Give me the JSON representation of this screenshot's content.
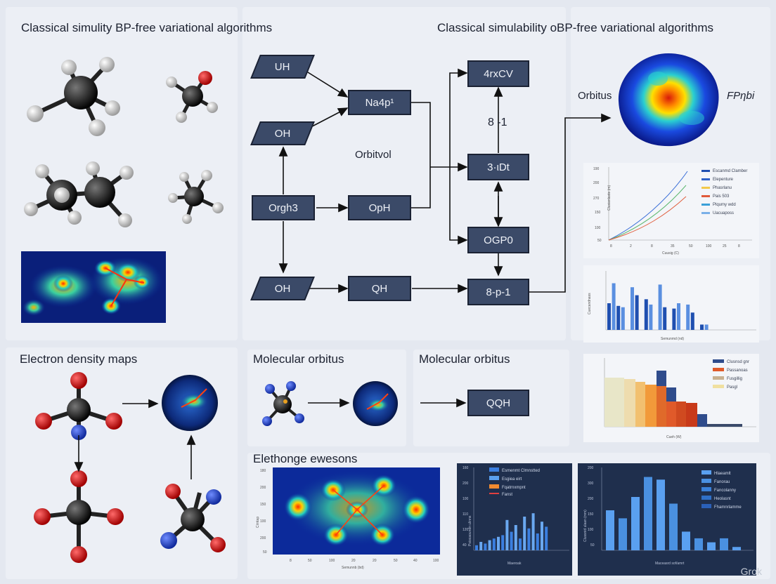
{
  "titles": {
    "top_left": "Classical simulity BP-free variational algorithms",
    "top_right": "Classical simulability oBP-free variational algorithms",
    "electron_density": "Electron density maps",
    "molecular_1": "Molecular orbitus",
    "molecular_2": "Molecular orbitus",
    "elethonge": "Elethonge ewesons"
  },
  "flow": {
    "uh": "UH",
    "oh_top": "OH",
    "orgh3": "Orgh3",
    "oh_bottom": "OH",
    "nap": "Na4p¹",
    "oph": "OpH",
    "qh": "QH",
    "orbitvol": "Orbitvol",
    "arxcv": "4rxCV",
    "eight_minus": "8 -1",
    "nidt": "3·ιDt",
    "ogpo": "OGP0",
    "eight_p": "8-p-1",
    "qqh": "QQH"
  },
  "density_labels": {
    "left": "Orbitus",
    "right": "FPηbi"
  },
  "chart_line": {
    "legend": [
      "Escanmd Clamber",
      "Elepenture",
      "Phasrlanu",
      "Pais 503",
      "Plqumy wdd",
      "Uacuaposs"
    ],
    "xlabel": "Cuusig (C)",
    "ylabel": "Clusianlaxte (m)"
  },
  "chart_bar1": {
    "xlabel": "Semunmd (nd)",
    "ylabel": "Cuecandnass"
  },
  "chart_bar2": {
    "legend": [
      "Clusnsd gnr",
      "Passanoas",
      "Fusgillig",
      "Pasgl"
    ],
    "xlabel": "Cueh (W)"
  },
  "heatmap": {
    "xlabel": "Semunnb (bd)",
    "ylabel": "Cirntap"
  },
  "chart_dark1": {
    "legend": [
      "Esmenmt Clmnstted",
      "Esgiea eirt",
      "Fqatrnxmpnt",
      "Fanst"
    ],
    "xlabel": "Maeroak",
    "ylabel": "Psiocaoundn ulinns"
  },
  "chart_dark2": {
    "legend": [
      "Hlaeamlt",
      "Fanorau",
      "Fancolanny",
      "Heolasnt",
      "Fhamnrlamme"
    ],
    "xlabel": "Maceasrd sof/amrt",
    "ylabel": "Clussnid ulaan (mm)"
  },
  "watermark": "Grok",
  "colors": {
    "node": "#3b4a68",
    "background": "#e4e8f0"
  }
}
